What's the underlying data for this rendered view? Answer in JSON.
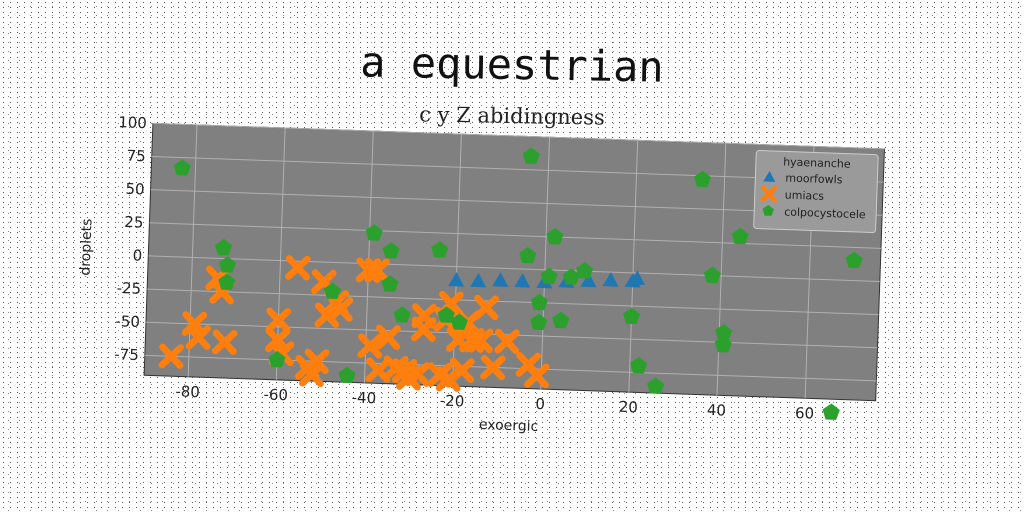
{
  "chart_data": {
    "type": "scatter",
    "title": "a equestrian",
    "subtitle": "c y Z abidingness",
    "xlabel": "exoergic",
    "ylabel": "droplets",
    "xlim": [
      -90,
      76
    ],
    "ylim": [
      -90,
      100
    ],
    "xticks": [
      -80,
      -60,
      -40,
      -20,
      0,
      20,
      40,
      60
    ],
    "yticks": [
      100,
      75,
      50,
      25,
      0,
      -25,
      -50,
      -75
    ],
    "grid": true,
    "background": "#808080",
    "legend": {
      "title": "hyaenanche",
      "placement": "top-right"
    },
    "series": [
      {
        "name": "moorfowls",
        "color": "#1f77b4",
        "marker": "triangle",
        "points": [
          [
            -20,
            -10
          ],
          [
            -15,
            -10
          ],
          [
            -10,
            -9
          ],
          [
            -5,
            -9
          ],
          [
            0,
            -9
          ],
          [
            5,
            -8
          ],
          [
            10,
            -7
          ],
          [
            15,
            -6
          ],
          [
            20,
            -6
          ],
          [
            21,
            -4
          ]
        ]
      },
      {
        "name": "umiacs",
        "color": "#ff7f0e",
        "marker": "x",
        "points": [
          [
            -84,
            -75
          ],
          [
            -79,
            -50
          ],
          [
            -78,
            -60
          ],
          [
            -73,
            -25
          ],
          [
            -74,
            -15
          ],
          [
            -72,
            -63
          ],
          [
            -60,
            -45
          ],
          [
            -60,
            -60
          ],
          [
            -59,
            -70
          ],
          [
            -56,
            -5
          ],
          [
            -53,
            -80
          ],
          [
            -52,
            -85
          ],
          [
            -51,
            -75
          ],
          [
            -50,
            -15
          ],
          [
            -49,
            -40
          ],
          [
            -47,
            -30
          ],
          [
            -46,
            -35
          ],
          [
            -40,
            -5
          ],
          [
            -38,
            -5
          ],
          [
            -39,
            -62
          ],
          [
            -37,
            -80
          ],
          [
            -35,
            -55
          ],
          [
            -33,
            -78
          ],
          [
            -31,
            -80
          ],
          [
            -30,
            -85
          ],
          [
            -28,
            -82
          ],
          [
            -27,
            -38
          ],
          [
            -27,
            -48
          ],
          [
            -23,
            -82
          ],
          [
            -22,
            -40
          ],
          [
            -21,
            -28
          ],
          [
            -21,
            -85
          ],
          [
            -19,
            -55
          ],
          [
            -18,
            -78
          ],
          [
            -17,
            -42
          ],
          [
            -16,
            -55
          ],
          [
            -14,
            -55
          ],
          [
            -13,
            -30
          ],
          [
            -11,
            -75
          ],
          [
            -8,
            -55
          ],
          [
            -3,
            -72
          ],
          [
            -1,
            -80
          ]
        ]
      },
      {
        "name": "colpocystocele",
        "color": "#2ca02c",
        "marker": "pentagon",
        "points": [
          [
            -83,
            67
          ],
          [
            -73,
            8
          ],
          [
            -72,
            -5
          ],
          [
            -72,
            -18
          ],
          [
            -60,
            -75
          ],
          [
            -48,
            -22
          ],
          [
            -44,
            -85
          ],
          [
            -39,
            23
          ],
          [
            -35,
            10
          ],
          [
            -35,
            -15
          ],
          [
            -32,
            -38
          ],
          [
            -24,
            12
          ],
          [
            -22,
            -37
          ],
          [
            -19,
            -42
          ],
          [
            -4,
            85
          ],
          [
            -4,
            10
          ],
          [
            -1,
            -25
          ],
          [
            -1,
            -40
          ],
          [
            1,
            -5
          ],
          [
            2,
            25
          ],
          [
            4,
            -38
          ],
          [
            6,
            -5
          ],
          [
            9,
            0
          ],
          [
            20,
            -33
          ],
          [
            22,
            -70
          ],
          [
            26,
            -85
          ],
          [
            35,
            72
          ],
          [
            38,
            0
          ],
          [
            41,
            -43
          ],
          [
            41,
            -52
          ],
          [
            44,
            30
          ],
          [
            66,
            -100
          ],
          [
            70,
            15
          ]
        ]
      }
    ]
  }
}
